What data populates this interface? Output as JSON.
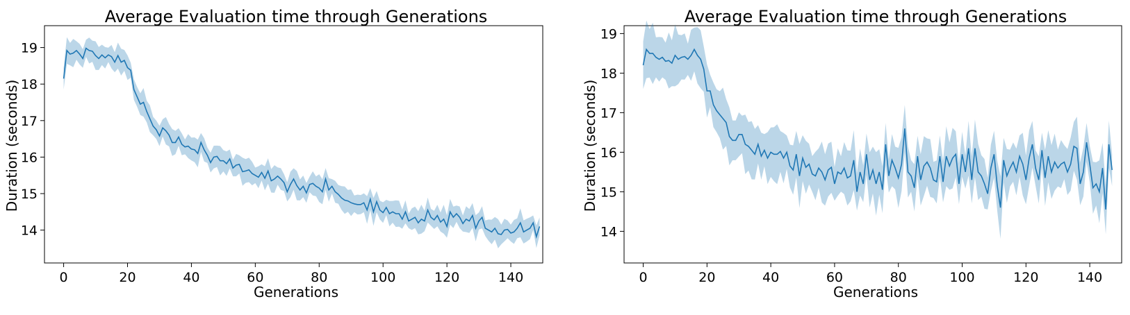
{
  "colors": {
    "line": "#1f77b4",
    "band": "#1f77b4",
    "band_opacity": 0.3,
    "frame": "#000000",
    "background": "#ffffff"
  },
  "chart_data": [
    {
      "type": "line",
      "title": "Average Evaluation time through Generations",
      "xlabel": "Generations",
      "ylabel": "Duration (seconds)",
      "xlim": [
        -6,
        150
      ],
      "ylim": [
        13.1,
        19.6
      ],
      "xticks": [
        0,
        20,
        40,
        60,
        80,
        100,
        120,
        140
      ],
      "yticks": [
        14,
        15,
        16,
        17,
        18,
        19
      ],
      "grid": false,
      "band": "mean ± std shaded",
      "series": [
        {
          "x_start": 0,
          "x_step": 1,
          "values": [
            18.15,
            18.92,
            18.82,
            18.85,
            18.92,
            18.82,
            18.7,
            18.98,
            18.92,
            18.9,
            18.78,
            18.7,
            18.8,
            18.72,
            18.8,
            18.75,
            18.6,
            18.78,
            18.6,
            18.65,
            18.45,
            18.38,
            17.85,
            17.65,
            17.45,
            17.5,
            17.25,
            17.05,
            16.85,
            16.75,
            16.58,
            16.8,
            16.72,
            16.6,
            16.4,
            16.4,
            16.55,
            16.35,
            16.28,
            16.3,
            16.22,
            16.2,
            16.1,
            16.4,
            16.2,
            16.05,
            15.85,
            16.0,
            16.02,
            15.9,
            15.9,
            15.82,
            15.95,
            15.7,
            15.78,
            15.8,
            15.6,
            15.62,
            15.65,
            15.55,
            15.5,
            15.45,
            15.58,
            15.42,
            15.62,
            15.35,
            15.4,
            15.48,
            15.4,
            15.3,
            15.05,
            15.25,
            15.4,
            15.22,
            15.1,
            15.2,
            15.02,
            15.25,
            15.28,
            15.2,
            15.15,
            15.05,
            15.4,
            15.1,
            15.2,
            15.05,
            14.98,
            14.88,
            14.82,
            14.8,
            14.75,
            14.72,
            14.7,
            14.7,
            14.75,
            14.55,
            14.85,
            14.5,
            14.78,
            14.55,
            14.48,
            14.62,
            14.45,
            14.5,
            14.45,
            14.45,
            14.3,
            14.5,
            14.25,
            14.3,
            14.35,
            14.2,
            14.3,
            14.25,
            14.55,
            14.35,
            14.28,
            14.4,
            14.22,
            14.3,
            14.1,
            14.5,
            14.35,
            14.45,
            14.35,
            14.18,
            14.3,
            14.25,
            14.4,
            14.05,
            14.25,
            14.35,
            14.05,
            14.0,
            13.95,
            14.05,
            13.9,
            13.88,
            14.0,
            14.02,
            13.92,
            13.95,
            14.05,
            14.2,
            13.95,
            14.0,
            14.05,
            14.2,
            13.82,
            14.1
          ],
          "std": 0.3
        }
      ]
    },
    {
      "type": "line",
      "title": "Average Evaluation time through Generations",
      "xlabel": "Generations",
      "ylabel": "Duration (seconds)",
      "xlim": [
        -6,
        150
      ],
      "ylim": [
        13.2,
        19.2
      ],
      "xticks": [
        0,
        20,
        40,
        60,
        80,
        100,
        120,
        140
      ],
      "yticks": [
        14,
        15,
        16,
        17,
        18,
        19
      ],
      "grid": false,
      "band": "mean ± std shaded",
      "series": [
        {
          "x_start": 0,
          "x_step": 1,
          "values": [
            18.2,
            18.6,
            18.5,
            18.5,
            18.4,
            18.35,
            18.4,
            18.3,
            18.32,
            18.25,
            18.45,
            18.35,
            18.4,
            18.42,
            18.35,
            18.45,
            18.6,
            18.45,
            18.35,
            18.1,
            17.55,
            17.55,
            17.2,
            17.05,
            16.95,
            16.85,
            16.75,
            16.4,
            16.3,
            16.3,
            16.45,
            16.45,
            16.2,
            16.15,
            16.05,
            15.95,
            16.2,
            15.9,
            16.05,
            15.85,
            16.0,
            15.95,
            15.95,
            16.02,
            15.85,
            16.0,
            15.65,
            15.55,
            15.95,
            15.4,
            15.85,
            15.62,
            15.7,
            15.45,
            15.4,
            15.6,
            15.5,
            15.3,
            15.55,
            15.62,
            15.2,
            15.5,
            15.45,
            15.6,
            15.35,
            15.4,
            15.8,
            15.0,
            15.5,
            15.2,
            15.95,
            15.3,
            15.55,
            15.2,
            15.5,
            15.05,
            16.2,
            15.4,
            15.8,
            15.6,
            15.35,
            15.7,
            16.6,
            15.5,
            15.4,
            15.1,
            15.9,
            15.3,
            15.65,
            15.75,
            15.6,
            15.3,
            15.25,
            15.9,
            15.25,
            15.9,
            15.65,
            15.85,
            15.95,
            15.2,
            15.95,
            15.5,
            16.1,
            15.3,
            16.1,
            15.5,
            15.4,
            15.2,
            14.95,
            15.6,
            15.95,
            15.15,
            14.6,
            15.8,
            15.4,
            15.6,
            15.75,
            15.5,
            15.9,
            15.7,
            15.3,
            15.85,
            16.2,
            15.6,
            15.3,
            16.05,
            15.35,
            15.9,
            15.5,
            15.75,
            15.6,
            15.7,
            15.75,
            15.5,
            15.7,
            16.15,
            16.1,
            15.2,
            15.5,
            16.25,
            15.7,
            15.1,
            15.2,
            15.0,
            15.6,
            14.55,
            16.2,
            15.55
          ],
          "std": 0.6
        }
      ]
    }
  ]
}
